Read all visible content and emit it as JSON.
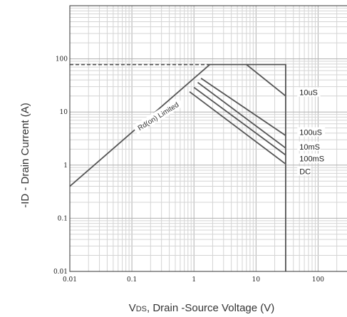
{
  "chart_data": {
    "type": "line",
    "title": "",
    "xlabel": "VDS, Drain -Source Voltage (V)",
    "xlabel_main": "V",
    "xlabel_sub": "DS",
    "xlabel_rest": ", Drain -Source Voltage (V)",
    "ylabel": "-ID - Drain Current (A)",
    "x_scale": "log",
    "y_scale": "log",
    "xlim": [
      0.01,
      300
    ],
    "ylim": [
      0.01,
      1000
    ],
    "x_ticks": [
      0.01,
      0.1,
      1,
      10,
      100
    ],
    "x_tick_labels": [
      "0.01",
      "0.1",
      "1",
      "10",
      "100"
    ],
    "y_ticks": [
      0.01,
      0.1,
      1,
      10,
      100
    ],
    "y_tick_labels": [
      "0.01",
      "0.1",
      "1",
      "10",
      "100"
    ],
    "grid": true,
    "series": [
      {
        "name": "Rd(on) Limited",
        "style": "solid",
        "points": [
          [
            0.01,
            0.4
          ],
          [
            1.8,
            78
          ]
        ]
      },
      {
        "name": "Rd(on) Limited",
        "style": "dashed",
        "points": [
          [
            0.01,
            78
          ],
          [
            1.8,
            78
          ]
        ]
      },
      {
        "name": "Limit",
        "style": "solid",
        "points": [
          [
            1.8,
            78
          ],
          [
            30,
            78
          ],
          [
            30,
            0.01
          ]
        ]
      },
      {
        "name": "10uS",
        "style": "solid",
        "points": [
          [
            7,
            78
          ],
          [
            30,
            20
          ]
        ]
      },
      {
        "name": "100uS",
        "style": "solid",
        "points": [
          [
            1.3,
            43
          ],
          [
            30,
            3.6
          ]
        ]
      },
      {
        "name": "10mS",
        "style": "solid",
        "points": [
          [
            1.15,
            36
          ],
          [
            30,
            2.1
          ]
        ]
      },
      {
        "name": "100mS",
        "style": "solid",
        "points": [
          [
            1.0,
            29
          ],
          [
            30,
            1.55
          ]
        ]
      },
      {
        "name": "DC",
        "style": "solid",
        "points": [
          [
            0.85,
            24
          ],
          [
            30,
            1.05
          ]
        ]
      }
    ],
    "annotations": [
      {
        "text": "Rd(on) Limited",
        "x": 0.27,
        "y": 8,
        "rotation_deg": -32
      },
      {
        "text": "10uS",
        "x": 50,
        "y": 22
      },
      {
        "text": "100uS",
        "x": 50,
        "y": 3.9
      },
      {
        "text": "10mS",
        "x": 50,
        "y": 2.1
      },
      {
        "text": "100mS",
        "x": 50,
        "y": 1.25
      },
      {
        "text": "DC",
        "x": 50,
        "y": 0.72
      }
    ]
  }
}
